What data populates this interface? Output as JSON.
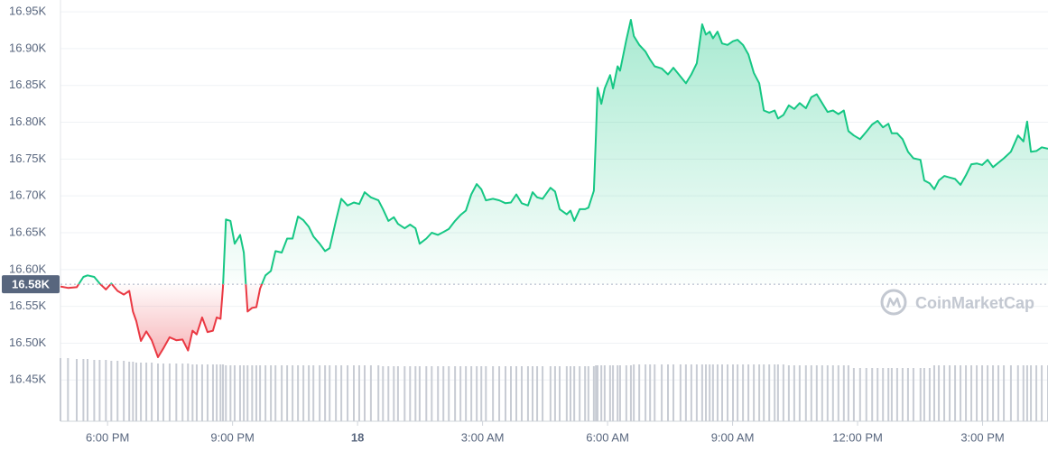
{
  "chart_data": {
    "type": "line",
    "x": [
      16.87,
      17.05,
      17.26,
      17.42,
      17.52,
      17.68,
      17.81,
      17.96,
      18.09,
      18.24,
      18.39,
      18.52,
      18.61,
      18.69,
      18.8,
      18.93,
      19.06,
      19.21,
      19.34,
      19.49,
      19.65,
      19.8,
      19.93,
      20.04,
      20.14,
      20.27,
      20.4,
      20.53,
      20.62,
      20.71,
      20.77,
      20.84,
      20.95,
      21.05,
      21.18,
      21.27,
      21.36,
      21.47,
      21.57,
      21.66,
      21.79,
      21.92,
      22.03,
      22.18,
      22.31,
      22.44,
      22.57,
      22.7,
      22.83,
      22.94,
      23.09,
      23.22,
      23.33,
      23.48,
      23.61,
      23.76,
      23.91,
      24.04,
      24.17,
      24.32,
      24.5,
      24.61,
      24.74,
      24.87,
      24.97,
      25.13,
      25.26,
      25.39,
      25.49,
      25.65,
      25.78,
      25.93,
      26.06,
      26.19,
      26.34,
      26.47,
      26.6,
      26.73,
      26.86,
      26.97,
      27.08,
      27.25,
      27.4,
      27.55,
      27.68,
      27.81,
      27.94,
      28.09,
      28.2,
      28.31,
      28.44,
      28.63,
      28.74,
      28.85,
      29.02,
      29.11,
      29.2,
      29.33,
      29.46,
      29.54,
      29.67,
      29.72,
      29.76,
      29.85,
      29.93,
      30.06,
      30.13,
      30.24,
      30.3,
      30.45,
      30.56,
      30.63,
      30.76,
      30.91,
      31.02,
      31.13,
      31.3,
      31.45,
      31.58,
      31.75,
      31.88,
      32.01,
      32.14,
      32.27,
      32.36,
      32.45,
      32.53,
      32.64,
      32.75,
      32.88,
      33.01,
      33.12,
      33.25,
      33.38,
      33.51,
      33.64,
      33.75,
      33.88,
      34.01,
      34.09,
      34.22,
      34.35,
      34.48,
      34.61,
      34.76,
      34.89,
      35.02,
      35.15,
      35.28,
      35.41,
      35.54,
      35.67,
      35.78,
      35.91,
      36.06,
      36.21,
      36.35,
      36.48,
      36.61,
      36.74,
      36.82,
      36.95,
      37.08,
      37.21,
      37.34,
      37.51,
      37.6,
      37.73,
      37.84,
      37.95,
      38.08,
      38.21,
      38.34,
      38.47,
      38.6,
      38.73,
      38.86,
      38.99,
      39.12,
      39.25,
      39.38,
      39.51,
      39.68,
      39.85,
      39.98,
      40.07,
      40.16,
      40.29,
      40.42,
      40.57
    ],
    "series": [
      {
        "color": "#16c784",
        "values": [
          16.577,
          16.575,
          16.576,
          16.59,
          16.592,
          16.59,
          16.581,
          16.573,
          16.581,
          16.571,
          16.566,
          16.571,
          16.543,
          16.53,
          16.503,
          16.516,
          16.504,
          16.481,
          16.493,
          16.508,
          16.504,
          16.505,
          16.49,
          16.517,
          16.512,
          16.535,
          16.515,
          16.517,
          16.535,
          16.533,
          16.576,
          16.668,
          16.666,
          16.635,
          16.647,
          16.623,
          16.543,
          16.548,
          16.549,
          16.574,
          16.592,
          16.598,
          16.625,
          16.623,
          16.642,
          16.642,
          16.672,
          16.667,
          16.658,
          16.645,
          16.635,
          16.625,
          16.629,
          16.666,
          16.696,
          16.687,
          16.691,
          16.689,
          16.705,
          16.698,
          16.694,
          16.682,
          16.666,
          16.671,
          16.662,
          16.656,
          16.661,
          16.656,
          16.635,
          16.642,
          16.65,
          16.647,
          16.651,
          16.655,
          16.666,
          16.674,
          16.68,
          16.702,
          16.716,
          16.709,
          16.694,
          16.696,
          16.694,
          16.69,
          16.691,
          16.702,
          16.69,
          16.687,
          16.705,
          16.698,
          16.696,
          16.711,
          16.706,
          16.682,
          16.675,
          16.68,
          16.666,
          16.682,
          16.682,
          16.684,
          16.707,
          16.782,
          16.847,
          16.825,
          16.846,
          16.864,
          16.846,
          16.876,
          16.87,
          16.912,
          16.939,
          16.917,
          16.905,
          16.896,
          16.885,
          16.876,
          16.873,
          16.865,
          16.874,
          16.862,
          16.853,
          16.865,
          16.88,
          16.933,
          16.919,
          16.923,
          16.914,
          16.923,
          16.907,
          16.905,
          16.91,
          16.912,
          16.905,
          16.892,
          16.867,
          16.853,
          16.816,
          16.813,
          16.816,
          16.805,
          16.81,
          16.823,
          16.818,
          16.826,
          16.819,
          16.834,
          16.838,
          16.826,
          16.814,
          16.816,
          16.811,
          16.816,
          16.788,
          16.782,
          16.777,
          16.787,
          16.797,
          16.802,
          16.793,
          16.798,
          16.785,
          16.785,
          16.777,
          16.76,
          16.751,
          16.749,
          16.721,
          16.717,
          16.709,
          16.721,
          16.727,
          16.725,
          16.723,
          16.715,
          16.728,
          16.743,
          16.744,
          16.742,
          16.749,
          16.739,
          16.745,
          16.751,
          16.76,
          16.782,
          16.774,
          16.801,
          16.76,
          16.761,
          16.766,
          16.764
        ]
      }
    ],
    "below_color": "#ea3943",
    "baseline": {
      "value": 16.58,
      "label": "16.58K"
    },
    "volume": [
      70,
      70,
      69,
      69,
      69,
      68,
      68,
      68,
      67,
      67,
      67,
      66,
      66,
      65,
      65,
      65,
      65,
      64,
      64,
      64,
      64,
      64,
      64,
      63,
      63,
      63,
      63,
      63,
      63,
      63,
      63,
      62,
      62,
      62,
      62,
      62,
      62,
      62,
      62,
      62,
      62,
      62,
      62,
      62,
      62,
      62,
      62,
      62,
      62,
      62,
      62,
      62,
      62,
      62,
      62,
      62,
      62,
      62,
      62,
      62,
      62,
      61,
      61,
      61,
      61,
      61,
      61,
      61,
      61,
      61,
      61,
      61,
      61,
      61,
      61,
      61,
      61,
      61,
      61,
      61,
      61,
      61,
      61,
      61,
      61,
      61,
      61,
      61,
      61,
      61,
      61,
      61,
      61,
      61,
      61,
      61,
      61,
      61,
      61,
      61,
      61,
      62,
      62,
      62,
      62,
      62,
      62,
      62,
      62,
      62,
      62,
      63,
      63,
      63,
      63,
      63,
      63,
      63,
      63,
      63,
      63,
      63,
      63,
      63,
      63,
      63,
      63,
      63,
      63,
      63,
      63,
      63,
      63,
      63,
      63,
      63,
      63,
      63,
      63,
      63,
      63,
      62,
      62,
      62,
      62,
      62,
      62,
      62,
      62,
      62,
      62,
      62,
      62,
      59,
      59,
      59,
      59,
      59,
      59,
      59,
      59,
      59,
      59,
      59,
      59,
      59,
      59,
      59,
      62,
      62,
      62,
      62,
      62,
      62,
      62,
      62,
      62,
      62,
      62,
      62,
      62,
      62,
      62,
      62,
      62,
      62,
      62,
      62,
      62,
      62
    ],
    "volume_color": "#c8ccd4",
    "xlim": [
      16.87,
      40.57
    ],
    "xticks": [
      {
        "value": 18,
        "label": "6:00 PM"
      },
      {
        "value": 21,
        "label": "9:00 PM"
      },
      {
        "value": 24,
        "label": "18"
      },
      {
        "value": 27,
        "label": "3:00 AM"
      },
      {
        "value": 30,
        "label": "6:00 AM"
      },
      {
        "value": 33,
        "label": "9:00 AM"
      },
      {
        "value": 36,
        "label": "12:00 PM"
      },
      {
        "value": 39,
        "label": "3:00 PM"
      }
    ],
    "ylim": [
      16.394,
      16.966
    ],
    "yticks": [
      {
        "value": 16.45,
        "label": "16.45K"
      },
      {
        "value": 16.5,
        "label": "16.50K"
      },
      {
        "value": 16.55,
        "label": "16.55K"
      },
      {
        "value": 16.6,
        "label": "16.60K"
      },
      {
        "value": 16.65,
        "label": "16.65K"
      },
      {
        "value": 16.7,
        "label": "16.70K"
      },
      {
        "value": 16.75,
        "label": "16.75K"
      },
      {
        "value": 16.8,
        "label": "16.80K"
      },
      {
        "value": 16.85,
        "label": "16.85K"
      },
      {
        "value": 16.9,
        "label": "16.90K"
      },
      {
        "value": 16.95,
        "label": "16.95K"
      }
    ],
    "grid": true,
    "watermark": "CoinMarketCap"
  }
}
